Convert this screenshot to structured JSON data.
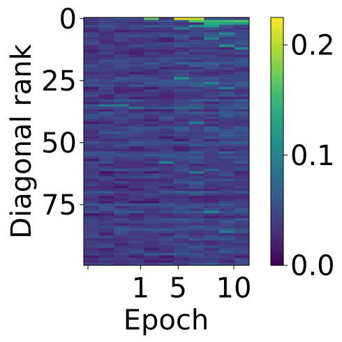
{
  "chart_data": {
    "type": "heatmap",
    "title": "",
    "xlabel": "Epoch",
    "ylabel": "Diagonal rank",
    "x_ticks": [
      "1",
      "5",
      "10"
    ],
    "y_ticks": [
      "0",
      "25",
      "50",
      "75"
    ],
    "ylim": [
      100,
      0
    ],
    "n_rows": 100,
    "n_cols": 11,
    "colorscale": "viridis",
    "colorbar": {
      "ticks": [
        "0.0",
        "0.1",
        "0.2"
      ],
      "range": [
        0.0,
        0.225
      ]
    },
    "highlights": [
      {
        "row": 0,
        "col": 4,
        "value": 0.17
      },
      {
        "row": 0,
        "col": 6,
        "value": 0.22
      },
      {
        "row": 0,
        "col": 7,
        "value": 0.21
      },
      {
        "row": 1,
        "col": 7,
        "value": 0.16
      },
      {
        "row": 1,
        "col": 8,
        "value": 0.15
      },
      {
        "row": 1,
        "col": 9,
        "value": 0.15
      },
      {
        "row": 1,
        "col": 10,
        "value": 0.16
      },
      {
        "row": 2,
        "col": 8,
        "value": 0.14
      },
      {
        "row": 2,
        "col": 9,
        "value": 0.13
      },
      {
        "row": 3,
        "col": 7,
        "value": 0.11
      },
      {
        "row": 3,
        "col": 8,
        "value": 0.12
      },
      {
        "row": 2,
        "col": 10,
        "value": 0.12
      },
      {
        "row": 4,
        "col": 6,
        "value": 0.09
      },
      {
        "row": 6,
        "col": 9,
        "value": 0.1
      },
      {
        "row": 8,
        "col": 8,
        "value": 0.1
      },
      {
        "row": 11,
        "col": 9,
        "value": 0.11
      },
      {
        "row": 12,
        "col": 10,
        "value": 0.1
      },
      {
        "row": 24,
        "col": 6,
        "value": 0.11
      },
      {
        "row": 26,
        "col": 8,
        "value": 0.1
      },
      {
        "row": 28,
        "col": 9,
        "value": 0.09
      },
      {
        "row": 35,
        "col": 1,
        "value": 0.09
      },
      {
        "row": 35,
        "col": 2,
        "value": 0.09
      },
      {
        "row": 36,
        "col": 3,
        "value": 0.08
      },
      {
        "row": 42,
        "col": 7,
        "value": 0.09
      },
      {
        "row": 58,
        "col": 5,
        "value": 0.1
      },
      {
        "row": 62,
        "col": 7,
        "value": 0.09
      },
      {
        "row": 78,
        "col": 8,
        "value": 0.1
      },
      {
        "row": 86,
        "col": 9,
        "value": 0.09
      }
    ]
  }
}
